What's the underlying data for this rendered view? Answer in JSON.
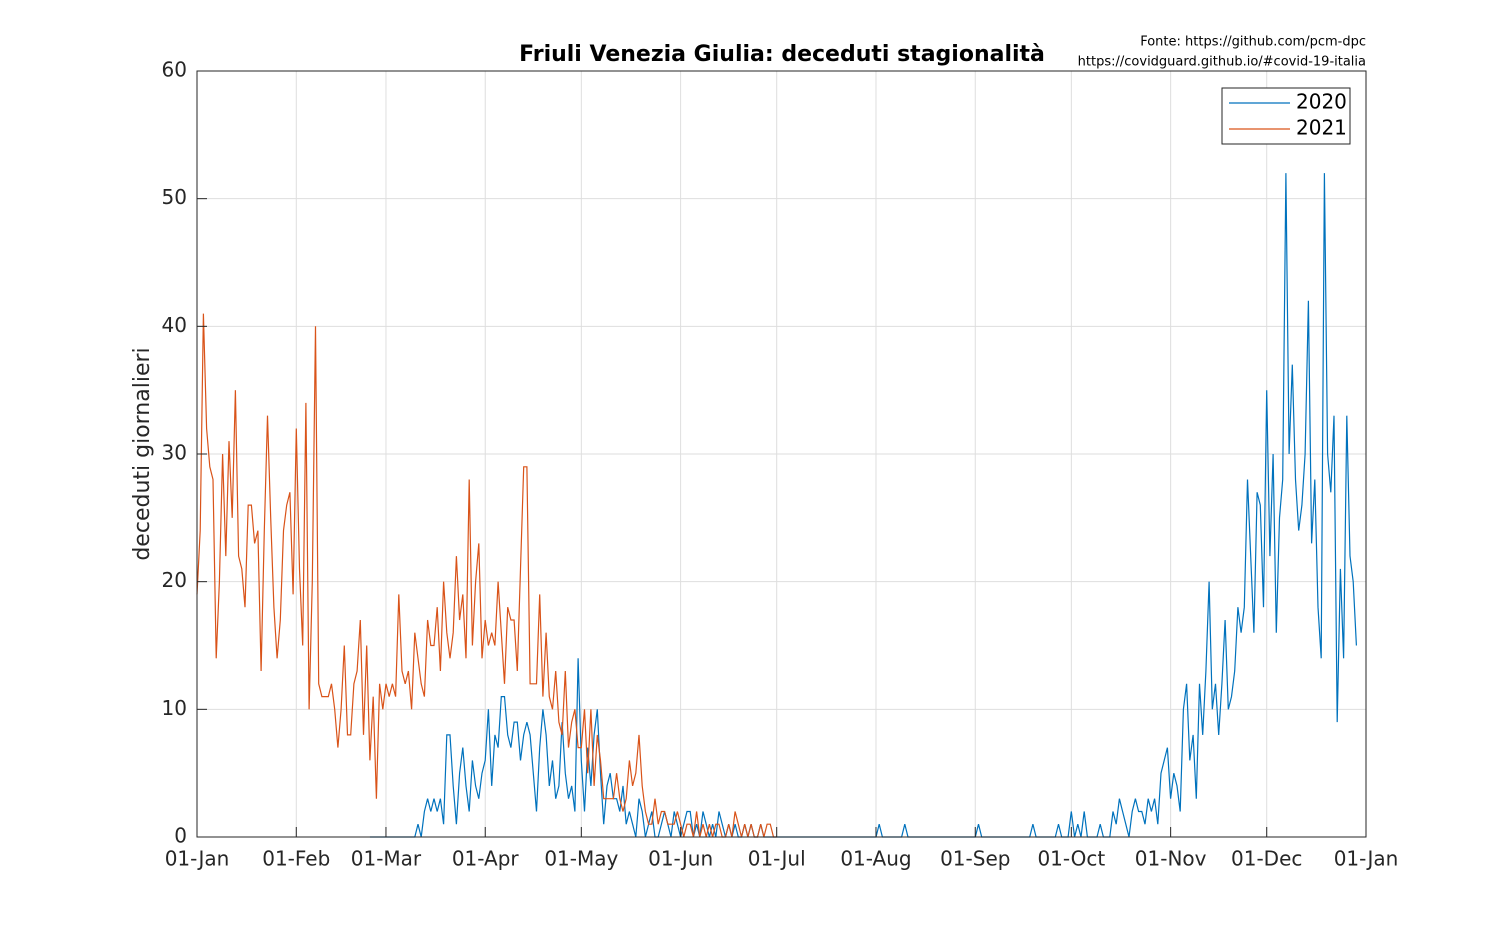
{
  "chart_data": {
    "type": "line",
    "title": "Friuli Venezia Giulia: deceduti stagionalità",
    "source": [
      "Fonte: https://github.com/pcm-dpc",
      "https://covidguard.github.io/#covid-19-italia"
    ],
    "y_label": "deceduti giornalieri",
    "legend": "top-right",
    "grid": true,
    "ylim": [
      0,
      60
    ],
    "yticks": [
      0,
      10,
      20,
      30,
      40,
      50,
      60
    ],
    "xticks": [
      "01-Jan",
      "01-Feb",
      "01-Mar",
      "01-Apr",
      "01-May",
      "01-Jun",
      "01-Jul",
      "01-Aug",
      "01-Sep",
      "01-Oct",
      "01-Nov",
      "01-Dec",
      "01-Jan"
    ],
    "x": [
      "01-Jan",
      "02-Jan",
      "03-Jan",
      "04-Jan",
      "05-Jan",
      "06-Jan",
      "07-Jan",
      "08-Jan",
      "09-Jan",
      "10-Jan",
      "11-Jan",
      "12-Jan",
      "13-Jan",
      "14-Jan",
      "15-Jan",
      "16-Jan",
      "17-Jan",
      "18-Jan",
      "19-Jan",
      "20-Jan",
      "21-Jan",
      "22-Jan",
      "23-Jan",
      "24-Jan",
      "25-Jan",
      "26-Jan",
      "27-Jan",
      "28-Jan",
      "29-Jan",
      "30-Jan",
      "31-Jan",
      "01-Feb",
      "02-Feb",
      "03-Feb",
      "04-Feb",
      "05-Feb",
      "06-Feb",
      "07-Feb",
      "08-Feb",
      "09-Feb",
      "10-Feb",
      "11-Feb",
      "12-Feb",
      "13-Feb",
      "14-Feb",
      "15-Feb",
      "16-Feb",
      "17-Feb",
      "18-Feb",
      "19-Feb",
      "20-Feb",
      "21-Feb",
      "22-Feb",
      "23-Feb",
      "24-Feb",
      "25-Feb",
      "26-Feb",
      "27-Feb",
      "28-Feb",
      "01-Mar",
      "02-Mar",
      "03-Mar",
      "04-Mar",
      "05-Mar",
      "06-Mar",
      "07-Mar",
      "08-Mar",
      "09-Mar",
      "10-Mar",
      "11-Mar",
      "12-Mar",
      "13-Mar",
      "14-Mar",
      "15-Mar",
      "16-Mar",
      "17-Mar",
      "18-Mar",
      "19-Mar",
      "20-Mar",
      "21-Mar",
      "22-Mar",
      "23-Mar",
      "24-Mar",
      "25-Mar",
      "26-Mar",
      "27-Mar",
      "28-Mar",
      "29-Mar",
      "30-Mar",
      "31-Mar",
      "01-Apr",
      "02-Apr",
      "03-Apr",
      "04-Apr",
      "05-Apr",
      "06-Apr",
      "07-Apr",
      "08-Apr",
      "09-Apr",
      "10-Apr",
      "11-Apr",
      "12-Apr",
      "13-Apr",
      "14-Apr",
      "15-Apr",
      "16-Apr",
      "17-Apr",
      "18-Apr",
      "19-Apr",
      "20-Apr",
      "21-Apr",
      "22-Apr",
      "23-Apr",
      "24-Apr",
      "25-Apr",
      "26-Apr",
      "27-Apr",
      "28-Apr",
      "29-Apr",
      "30-Apr",
      "01-May",
      "02-May",
      "03-May",
      "04-May",
      "05-May",
      "06-May",
      "07-May",
      "08-May",
      "09-May",
      "10-May",
      "11-May",
      "12-May",
      "13-May",
      "14-May",
      "15-May",
      "16-May",
      "17-May",
      "18-May",
      "19-May",
      "20-May",
      "21-May",
      "22-May",
      "23-May",
      "24-May",
      "25-May",
      "26-May",
      "27-May",
      "28-May",
      "29-May",
      "30-May",
      "31-May",
      "01-Jun",
      "02-Jun",
      "03-Jun",
      "04-Jun",
      "05-Jun",
      "06-Jun",
      "07-Jun",
      "08-Jun",
      "09-Jun",
      "10-Jun",
      "11-Jun",
      "12-Jun",
      "13-Jun",
      "14-Jun",
      "15-Jun",
      "16-Jun",
      "17-Jun",
      "18-Jun",
      "19-Jun",
      "20-Jun",
      "21-Jun",
      "22-Jun",
      "23-Jun",
      "24-Jun",
      "25-Jun",
      "26-Jun",
      "27-Jun",
      "28-Jun",
      "29-Jun",
      "30-Jun",
      "01-Jul",
      "02-Jul",
      "03-Jul",
      "04-Jul",
      "05-Jul",
      "06-Jul",
      "07-Jul",
      "08-Jul",
      "09-Jul",
      "10-Jul",
      "11-Jul",
      "12-Jul",
      "13-Jul",
      "14-Jul",
      "15-Jul",
      "16-Jul",
      "17-Jul",
      "18-Jul",
      "19-Jul",
      "20-Jul",
      "21-Jul",
      "22-Jul",
      "23-Jul",
      "24-Jul",
      "25-Jul",
      "26-Jul",
      "27-Jul",
      "28-Jul",
      "29-Jul",
      "30-Jul",
      "31-Jul",
      "01-Aug",
      "02-Aug",
      "03-Aug",
      "04-Aug",
      "05-Aug",
      "06-Aug",
      "07-Aug",
      "08-Aug",
      "09-Aug",
      "10-Aug",
      "11-Aug",
      "12-Aug",
      "13-Aug",
      "14-Aug",
      "15-Aug",
      "16-Aug",
      "17-Aug",
      "18-Aug",
      "19-Aug",
      "20-Aug",
      "21-Aug",
      "22-Aug",
      "23-Aug",
      "24-Aug",
      "25-Aug",
      "26-Aug",
      "27-Aug",
      "28-Aug",
      "29-Aug",
      "30-Aug",
      "31-Aug",
      "01-Sep",
      "02-Sep",
      "03-Sep",
      "04-Sep",
      "05-Sep",
      "06-Sep",
      "07-Sep",
      "08-Sep",
      "09-Sep",
      "10-Sep",
      "11-Sep",
      "12-Sep",
      "13-Sep",
      "14-Sep",
      "15-Sep",
      "16-Sep",
      "17-Sep",
      "18-Sep",
      "19-Sep",
      "20-Sep",
      "21-Sep",
      "22-Sep",
      "23-Sep",
      "24-Sep",
      "25-Sep",
      "26-Sep",
      "27-Sep",
      "28-Sep",
      "29-Sep",
      "30-Sep",
      "01-Oct",
      "02-Oct",
      "03-Oct",
      "04-Oct",
      "05-Oct",
      "06-Oct",
      "07-Oct",
      "08-Oct",
      "09-Oct",
      "10-Oct",
      "11-Oct",
      "12-Oct",
      "13-Oct",
      "14-Oct",
      "15-Oct",
      "16-Oct",
      "17-Oct",
      "18-Oct",
      "19-Oct",
      "20-Oct",
      "21-Oct",
      "22-Oct",
      "23-Oct",
      "24-Oct",
      "25-Oct",
      "26-Oct",
      "27-Oct",
      "28-Oct",
      "29-Oct",
      "30-Oct",
      "31-Oct",
      "01-Nov",
      "02-Nov",
      "03-Nov",
      "04-Nov",
      "05-Nov",
      "06-Nov",
      "07-Nov",
      "08-Nov",
      "09-Nov",
      "10-Nov",
      "11-Nov",
      "12-Nov",
      "13-Nov",
      "14-Nov",
      "15-Nov",
      "16-Nov",
      "17-Nov",
      "18-Nov",
      "19-Nov",
      "20-Nov",
      "21-Nov",
      "22-Nov",
      "23-Nov",
      "24-Nov",
      "25-Nov",
      "26-Nov",
      "27-Nov",
      "28-Nov",
      "29-Nov",
      "30-Nov",
      "01-Dec",
      "02-Dec",
      "03-Dec",
      "04-Dec",
      "05-Dec",
      "06-Dec",
      "07-Dec",
      "08-Dec",
      "09-Dec",
      "10-Dec",
      "11-Dec",
      "12-Dec",
      "13-Dec",
      "14-Dec",
      "15-Dec",
      "16-Dec",
      "17-Dec",
      "18-Dec",
      "19-Dec",
      "20-Dec",
      "21-Dec",
      "22-Dec",
      "23-Dec",
      "24-Dec",
      "25-Dec",
      "26-Dec",
      "27-Dec",
      "28-Dec",
      "29-Dec",
      "30-Dec",
      "31-Dec"
    ],
    "series": [
      {
        "name": "2020",
        "color": "#0072bd",
        "values": [
          null,
          null,
          null,
          null,
          null,
          null,
          null,
          null,
          null,
          null,
          null,
          null,
          null,
          null,
          null,
          null,
          null,
          null,
          null,
          null,
          null,
          null,
          null,
          null,
          null,
          null,
          null,
          null,
          null,
          null,
          null,
          null,
          null,
          null,
          null,
          null,
          null,
          null,
          null,
          null,
          null,
          null,
          null,
          null,
          null,
          null,
          null,
          null,
          null,
          null,
          null,
          null,
          null,
          null,
          0,
          0,
          0,
          0,
          0,
          0,
          0,
          0,
          0,
          0,
          0,
          0,
          0,
          0,
          0,
          1,
          0,
          2,
          3,
          2,
          3,
          2,
          3,
          1,
          8,
          8,
          4,
          1,
          5,
          7,
          4,
          2,
          6,
          4,
          3,
          5,
          6,
          10,
          4,
          8,
          7,
          11,
          11,
          8,
          7,
          9,
          9,
          6,
          8,
          9,
          8,
          5,
          2,
          7,
          10,
          8,
          4,
          6,
          3,
          4,
          9,
          5,
          3,
          4,
          2,
          14,
          6,
          2,
          7,
          4,
          8,
          10,
          5,
          1,
          4,
          5,
          3,
          3,
          2,
          4,
          1,
          2,
          1,
          0,
          3,
          2,
          0,
          1,
          2,
          0,
          0,
          1,
          2,
          1,
          0,
          2,
          1,
          0,
          1,
          2,
          2,
          0,
          1,
          0,
          2,
          1,
          0,
          1,
          0,
          2,
          1,
          0,
          1,
          0,
          1,
          0,
          0,
          1,
          0,
          1,
          0,
          0,
          1,
          0,
          0,
          0,
          0,
          0,
          0,
          0,
          0,
          0,
          0,
          0,
          0,
          0,
          0,
          0,
          0,
          0,
          0,
          0,
          0,
          0,
          0,
          0,
          0,
          0,
          0,
          0,
          0,
          0,
          0,
          0,
          0,
          0,
          0,
          0,
          0,
          1,
          0,
          0,
          0,
          0,
          0,
          0,
          0,
          1,
          0,
          0,
          0,
          0,
          0,
          0,
          0,
          0,
          0,
          0,
          0,
          0,
          0,
          0,
          0,
          0,
          0,
          0,
          0,
          0,
          0,
          0,
          1,
          0,
          0,
          0,
          0,
          0,
          0,
          0,
          0,
          0,
          0,
          0,
          0,
          0,
          0,
          0,
          0,
          1,
          0,
          0,
          0,
          0,
          0,
          0,
          0,
          1,
          0,
          0,
          0,
          2,
          0,
          1,
          0,
          2,
          0,
          0,
          0,
          0,
          1,
          0,
          0,
          0,
          2,
          1,
          3,
          2,
          1,
          0,
          2,
          3,
          2,
          2,
          1,
          3,
          2,
          3,
          1,
          5,
          6,
          7,
          3,
          5,
          4,
          2,
          10,
          12,
          6,
          8,
          3,
          12,
          8,
          13,
          20,
          10,
          12,
          8,
          12,
          17,
          10,
          11,
          13,
          18,
          16,
          18,
          28,
          22,
          16,
          27,
          26,
          18,
          35,
          22,
          30,
          16,
          25,
          28,
          52,
          30,
          37,
          28,
          24,
          26,
          30,
          42,
          23,
          28,
          18,
          14,
          52,
          30,
          27,
          33,
          9,
          21,
          14,
          33,
          22,
          20,
          15,
          null,
          null
        ]
      },
      {
        "name": "2021",
        "color": "#d95319",
        "values": [
          19,
          24,
          41,
          32,
          29,
          28,
          14,
          20,
          30,
          22,
          31,
          25,
          35,
          22,
          21,
          18,
          26,
          26,
          23,
          24,
          13,
          24,
          33,
          25,
          18,
          14,
          17,
          24,
          26,
          27,
          19,
          32,
          21,
          15,
          34,
          10,
          20,
          40,
          12,
          11,
          11,
          11,
          12,
          10,
          7,
          10,
          15,
          8,
          8,
          12,
          13,
          17,
          8,
          15,
          6,
          11,
          3,
          12,
          10,
          12,
          11,
          12,
          11,
          19,
          13,
          12,
          13,
          10,
          16,
          14,
          12,
          11,
          17,
          15,
          15,
          18,
          13,
          20,
          16,
          14,
          16,
          22,
          17,
          19,
          14,
          28,
          15,
          20,
          23,
          14,
          17,
          15,
          16,
          15,
          20,
          16,
          12,
          18,
          17,
          17,
          13,
          21,
          29,
          29,
          12,
          12,
          12,
          19,
          11,
          16,
          11,
          10,
          13,
          9,
          8,
          13,
          7,
          9,
          10,
          7,
          7,
          10,
          5,
          10,
          4,
          8,
          6,
          3,
          3,
          3,
          3,
          5,
          3,
          2,
          3,
          6,
          4,
          5,
          8,
          4,
          2,
          1,
          1,
          3,
          1,
          2,
          2,
          1,
          1,
          1,
          2,
          1,
          0,
          1,
          1,
          0,
          2,
          0,
          1,
          0,
          1,
          0,
          1,
          1,
          0,
          0,
          1,
          0,
          2,
          1,
          0,
          1,
          0,
          1,
          0,
          0,
          1,
          0,
          1,
          1,
          0,
          0,
          null,
          null,
          null,
          null,
          null,
          null,
          null,
          null,
          null,
          null,
          null,
          null,
          null,
          null,
          null,
          null,
          null,
          null,
          null,
          null,
          null,
          null,
          null,
          null,
          null,
          null,
          null,
          null,
          null,
          null,
          null,
          null,
          null,
          null,
          null,
          null,
          null,
          null,
          null,
          null,
          null,
          null,
          null,
          null,
          null,
          null,
          null,
          null,
          null,
          null,
          null,
          null,
          null,
          null,
          null,
          null,
          null,
          null,
          null,
          null,
          null,
          null,
          null,
          null,
          null,
          null,
          null,
          null,
          null,
          null,
          null,
          null,
          null,
          null,
          null,
          null,
          null,
          null,
          null,
          null,
          null,
          null,
          null,
          null,
          null,
          null,
          null,
          null,
          null,
          null,
          null,
          null,
          null,
          null,
          null,
          null,
          null,
          null,
          null,
          null,
          null,
          null,
          null,
          null,
          null,
          null,
          null,
          null,
          null,
          null,
          null,
          null,
          null,
          null,
          null,
          null,
          null,
          null,
          null,
          null,
          null,
          null,
          null,
          null,
          null,
          null,
          null,
          null,
          null,
          null,
          null,
          null,
          null,
          null,
          null,
          null,
          null,
          null,
          null,
          null,
          null,
          null,
          null,
          null,
          null,
          null,
          null,
          null,
          null,
          null,
          null,
          null,
          null,
          null,
          null,
          null,
          null,
          null,
          null,
          null,
          null,
          null,
          null,
          null,
          null,
          null,
          null,
          null,
          null,
          null,
          null,
          null,
          null,
          null,
          null,
          null,
          null,
          null,
          null,
          null,
          null,
          null,
          null
        ]
      }
    ]
  }
}
